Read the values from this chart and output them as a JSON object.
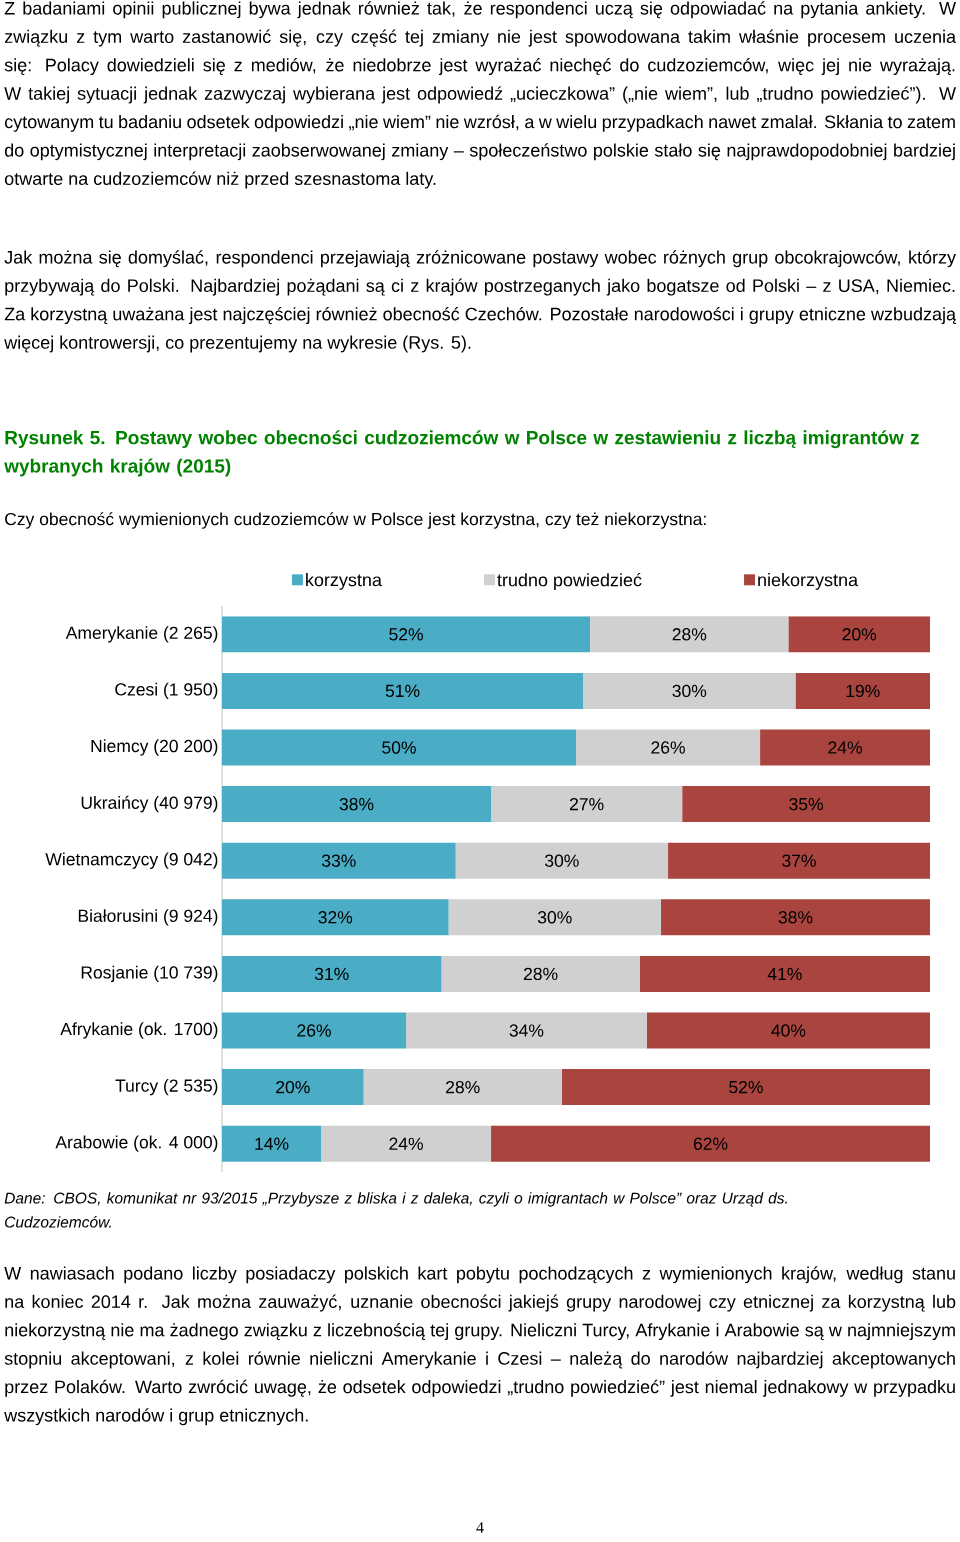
{
  "chart_data": {
    "type": "bar",
    "orientation": "horizontal",
    "stacked": true,
    "title": "Rysunek 5. Postawy wobec obecności cudzoziemców w Polsce w zestawieniu z liczbą imigrantów z wybranych krajów (2015)",
    "subtitle": "Czy obecność wymienionych cudzoziemców w Polsce jest korzystna, czy też niekorzystna:",
    "categories": [
      "Amerykanie (2 265)",
      "Czesi (1 950)",
      "Niemcy (20 200)",
      "Ukraińcy (40 979)",
      "Wietnamczycy (9 042)",
      "Białorusini (9 924)",
      "Rosjanie (10 739)",
      "Afrykanie (ok. 1700)",
      "Turcy (2 535)",
      "Arabowie (ok. 4 000)"
    ],
    "series": [
      {
        "name": "korzystna",
        "color": "#4bacc6",
        "values": [
          52,
          51,
          50,
          38,
          33,
          32,
          31,
          26,
          20,
          14
        ],
        "value_labels": [
          "52%",
          "51%",
          "50%",
          "38%",
          "33%",
          "32%",
          "31%",
          "26%",
          "20%",
          "14%"
        ]
      },
      {
        "name": "trudno powiedzieć",
        "color": "#d0d0d0",
        "values": [
          28,
          30,
          26,
          27,
          30,
          30,
          28,
          34,
          28,
          24
        ],
        "value_labels": [
          "28%",
          "30%",
          "26%",
          "27%",
          "30%",
          "30%",
          "28%",
          "34%",
          "28%",
          "24%"
        ]
      },
      {
        "name": "niekorzystna",
        "color": "#a9443f",
        "values": [
          20,
          19,
          24,
          35,
          37,
          38,
          41,
          40,
          52,
          62
        ],
        "value_labels": [
          "20%",
          "19%",
          "24%",
          "35%",
          "37%",
          "38%",
          "41%",
          "40%",
          "52%",
          "62%"
        ]
      }
    ],
    "tick_labels": "y",
    "legend": "top",
    "annotations": [
      "Z badaniami opinii publicznej bywa jednak również tak, że respondenci uczą się odpowiadać na pytania ankiety. W związku z tym warto zastanowić się, czy część tej zmiany nie jest spowodowana takim właśnie procesem uczenia się: Polacy dowiedzieli się z mediów, że niedobrze jest wyrażać niechęć do cudzoziemców, więc jej nie wyrażają. W takiej sytuacji jednak zazwyczaj wybierana jest odpowiedź „ucieczkowa” („nie wiem”, lub „trudno powiedzieć”). W cytowanym tu badaniu odsetek odpowiedzi „nie wiem” nie wzrósł, a w wielu przypadkach nawet zmalał. Skłania to zatem do optymistycznej interpretacji zaobserwowanej zmiany – społeczeństwo polskie stało się najprawdopodobniej bardziej otwarte na cudzoziemców niż przed szesnastoma laty.",
      "Jak można się domyślać, respondenci przejawiają zróżnicowane postawy wobec różnych grup obcokrajowców, którzy przybywają do Polski. Najbardziej pożądani są ci z krajów postrzeganych jako bogatsze od Polski – z USA, Niemiec. Za korzystną uważana jest najczęściej również obecność Czechów. Pozostałe narodowości i grupy etniczne wzbudzają więcej kontrowersji, co prezentujemy na wykresie (Rys. 5).",
      "Dane: CBOS, komunikat nr 93/2015 „Przybysze z bliska i z daleka, czyli o imigrantach w Polsce” oraz Urząd ds. Cudzoziemców.",
      "W nawiasach podano liczby posiadaczy polskich kart pobytu pochodzących z wymienionych krajów, według stanu na koniec 2014 r. Jak można zauważyć, uznanie obecności jakiejś grupy narodowej czy etnicznej za korzystną lub niekorzystną nie ma żadnego związku z liczebnością tej grupy. Nieliczni Turcy, Afrykanie i Arabowie są w najmniejszym stopniu akceptowani, z kolei równie nieliczni Amerykanie i Czesi – należą do narodów najbardziej akceptowanych przez Polaków. Warto zwrócić uwagę, że odsetek odpowiedzi „trudno powiedzieć” jest niemal jednakowy w przypadku wszystkich narodów i grup etnicznych.",
      "4"
    ]
  }
}
